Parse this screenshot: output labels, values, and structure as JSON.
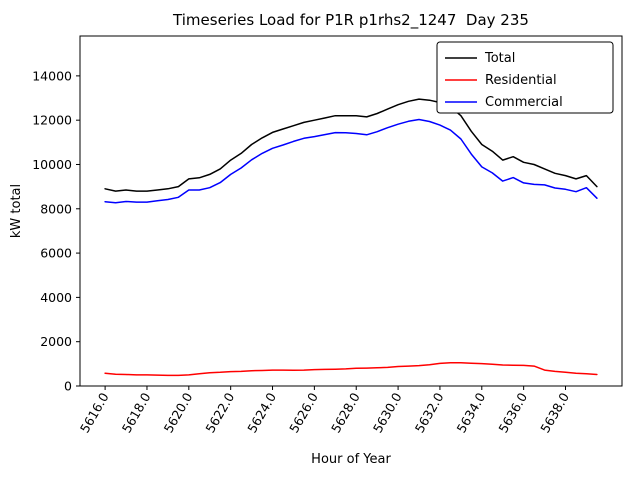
{
  "chart_data": {
    "type": "line",
    "title": "Timeseries Load for P1R p1rhs2_1247  Day 235",
    "xlabel": "Hour of Year",
    "ylabel": "kW total",
    "grid": false,
    "legend_position": "upper right",
    "xlim": [
      5614.8,
      5640.7
    ],
    "ylim": [
      0,
      15800
    ],
    "xticks": [
      {
        "v": 5616,
        "label": "5616.0"
      },
      {
        "v": 5618,
        "label": "5618.0"
      },
      {
        "v": 5620,
        "label": "5620.0"
      },
      {
        "v": 5622,
        "label": "5622.0"
      },
      {
        "v": 5624,
        "label": "5624.0"
      },
      {
        "v": 5626,
        "label": "5626.0"
      },
      {
        "v": 5628,
        "label": "5628.0"
      },
      {
        "v": 5630,
        "label": "5630.0"
      },
      {
        "v": 5632,
        "label": "5632.0"
      },
      {
        "v": 5634,
        "label": "5634.0"
      },
      {
        "v": 5636,
        "label": "5636.0"
      },
      {
        "v": 5638,
        "label": "5638.0"
      }
    ],
    "yticks": [
      {
        "v": 0,
        "label": "0"
      },
      {
        "v": 2000,
        "label": "2000"
      },
      {
        "v": 4000,
        "label": "4000"
      },
      {
        "v": 6000,
        "label": "6000"
      },
      {
        "v": 8000,
        "label": "8000"
      },
      {
        "v": 10000,
        "label": "10000"
      },
      {
        "v": 12000,
        "label": "12000"
      },
      {
        "v": 14000,
        "label": "14000"
      }
    ],
    "x": [
      5616.0,
      5616.5,
      5617.0,
      5617.5,
      5618.0,
      5618.5,
      5619.0,
      5619.5,
      5620.0,
      5620.5,
      5621.0,
      5621.5,
      5622.0,
      5622.5,
      5623.0,
      5623.5,
      5624.0,
      5624.5,
      5625.0,
      5625.5,
      5626.0,
      5626.5,
      5627.0,
      5627.5,
      5628.0,
      5628.5,
      5629.0,
      5629.5,
      5630.0,
      5630.5,
      5631.0,
      5631.5,
      5632.0,
      5632.5,
      5633.0,
      5633.5,
      5634.0,
      5634.5,
      5635.0,
      5635.5,
      5636.0,
      5636.5,
      5637.0,
      5637.5,
      5638.0,
      5638.5,
      5639.0,
      5639.5
    ],
    "series": [
      {
        "name": "Total",
        "color": "#000000",
        "values": [
          8900,
          8800,
          8850,
          8800,
          8800,
          8850,
          8900,
          9000,
          9350,
          9400,
          9550,
          9800,
          10200,
          10500,
          10900,
          11200,
          11450,
          11600,
          11750,
          11900,
          12000,
          12100,
          12200,
          12200,
          12200,
          12150,
          12300,
          12500,
          12700,
          12850,
          12950,
          12900,
          12800,
          12600,
          12200,
          11500,
          10900,
          10600,
          10200,
          10350,
          10100,
          10000,
          9800,
          9600,
          9500,
          9350,
          9500,
          9000
        ]
      },
      {
        "name": "Residential",
        "color": "#ff0000",
        "values": [
          580,
          530,
          520,
          500,
          500,
          490,
          480,
          480,
          500,
          550,
          600,
          620,
          650,
          660,
          690,
          700,
          720,
          720,
          710,
          720,
          740,
          750,
          760,
          770,
          800,
          810,
          820,
          840,
          880,
          900,
          920,
          960,
          1020,
          1050,
          1050,
          1030,
          1010,
          980,
          950,
          940,
          930,
          900,
          720,
          660,
          620,
          580,
          550,
          520
        ]
      },
      {
        "name": "Commercial",
        "color": "#0000ff",
        "values": [
          8320,
          8270,
          8330,
          8300,
          8300,
          8360,
          8420,
          8520,
          8850,
          8850,
          8950,
          9180,
          9550,
          9840,
          10210,
          10500,
          10730,
          10880,
          11040,
          11180,
          11260,
          11350,
          11440,
          11430,
          11400,
          11340,
          11480,
          11660,
          11820,
          11950,
          12030,
          11940,
          11780,
          11550,
          11150,
          10470,
          9890,
          9620,
          9250,
          9410,
          9170,
          9100,
          9080,
          8940,
          8880,
          8770,
          8950,
          8480
        ]
      }
    ]
  }
}
